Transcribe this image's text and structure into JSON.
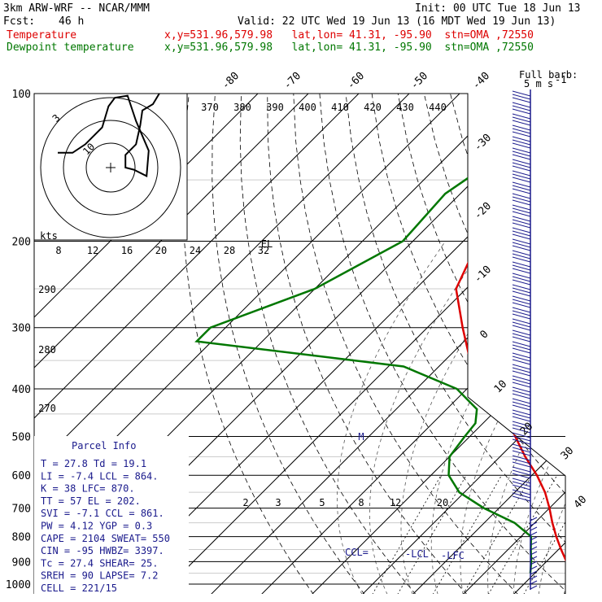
{
  "header": {
    "model": "3km ARW-WRF -- NCAR/MMM",
    "init": "Init: 00 UTC Tue 18 Jun 13",
    "fcst_label": "Fcst:",
    "fcst_value": "46 h",
    "valid": "Valid: 22 UTC Wed 19 Jun 13 (16 MDT Wed 19 Jun 13)",
    "temp_label": "Temperature",
    "temp_info": "x,y=531.96,579.98   lat,lon= 41.31, -95.90  stn=OMA ,72550",
    "dew_label": "Dewpoint temperature",
    "dew_info": "x,y=531.96,579.98   lat,lon= 41.31, -95.90  stn=OMA ,72550"
  },
  "colors": {
    "temperature": "#dd0000",
    "dewpoint": "#007700",
    "parcel_text": "#1a1a8c",
    "wind": "#1a1a8c"
  },
  "chart_data": {
    "type": "skew-t",
    "pressure_levels": [
      "100",
      "200",
      "300",
      "400",
      "500",
      "600",
      "700",
      "800",
      "900",
      "1000"
    ],
    "isotherm_labels": [
      "-80",
      "-70",
      "-60",
      "-50",
      "-40",
      "-30",
      "-20",
      "-10",
      "0",
      "10",
      "20",
      "30",
      "40"
    ],
    "theta_labels": [
      "370",
      "380",
      "390",
      "400",
      "410",
      "420",
      "430",
      "440"
    ],
    "theta_e_labels": [
      "290",
      "280",
      "270"
    ],
    "mixing_ratio_labels": [
      "2",
      "3",
      "5",
      "8",
      "12",
      "20"
    ],
    "hodograph_labels": [
      "3",
      "10",
      "kts",
      "8",
      "12",
      "16",
      "20",
      "24",
      "28",
      "32"
    ],
    "el_marker": "EL",
    "m_marker": "M",
    "markers": {
      "ccl": "CCL=",
      "lcl": "-LCL",
      "lfc": "-LFC"
    },
    "wind_legend": {
      "title": "Full barb:",
      "value": "5 m s",
      "exp": "-1"
    },
    "temperature": [
      [
        100,
        -60.5
      ],
      [
        130,
        -59.5
      ],
      [
        160,
        -57.5
      ],
      [
        200,
        -57
      ],
      [
        250,
        -52
      ],
      [
        300,
        -43
      ],
      [
        350,
        -35
      ],
      [
        400,
        -24
      ],
      [
        450,
        -17
      ],
      [
        500,
        -11
      ],
      [
        550,
        -5
      ],
      [
        600,
        1
      ],
      [
        650,
        6
      ],
      [
        700,
        10
      ],
      [
        750,
        13.5
      ],
      [
        800,
        17
      ],
      [
        850,
        20.5
      ],
      [
        900,
        24
      ],
      [
        950,
        27.8
      ]
    ],
    "dewpoint": [
      [
        100,
        -65
      ],
      [
        130,
        -69
      ],
      [
        160,
        -73
      ],
      [
        200,
        -72
      ],
      [
        250,
        -80
      ],
      [
        300,
        -93
      ],
      [
        320,
        -93
      ],
      [
        360,
        -47
      ],
      [
        400,
        -32
      ],
      [
        440,
        -24
      ],
      [
        470,
        -21.5
      ],
      [
        500,
        -21
      ],
      [
        550,
        -20
      ],
      [
        600,
        -16.5
      ],
      [
        650,
        -11
      ],
      [
        700,
        -3
      ],
      [
        750,
        6
      ],
      [
        800,
        12
      ],
      [
        850,
        14.5
      ],
      [
        900,
        17
      ],
      [
        950,
        19.1
      ]
    ],
    "hodograph": [
      [
        -50,
        14
      ],
      [
        -36,
        14
      ],
      [
        -24,
        22
      ],
      [
        -8,
        38
      ],
      [
        -2,
        58
      ],
      [
        4,
        66
      ],
      [
        16,
        68
      ],
      [
        24,
        44
      ],
      [
        36,
        16
      ],
      [
        34,
        -8
      ],
      [
        22,
        -2
      ],
      [
        14,
        0
      ],
      [
        14,
        12
      ],
      [
        24,
        22
      ],
      [
        28,
        40
      ],
      [
        30,
        54
      ],
      [
        40,
        60
      ],
      [
        46,
        70
      ]
    ],
    "parcel_info": {
      "title": "Parcel Info",
      "rows": [
        [
          "T  =   27.8 Td =  19.1"
        ],
        [
          "LI =   -7.4 LCL =  864."
        ],
        [
          "K  =     38 LFC=  870."
        ],
        [
          "TT =     57 EL  =  202."
        ],
        [
          "SVI =  -7.1 CCL =  861."
        ],
        [
          "PW =   4.12 YGP =   0.3"
        ],
        [
          "CAPE =  2104 SWEAT=  550"
        ],
        [
          "CIN  =   -95 HWBZ= 3397."
        ],
        [
          "Tc =   27.4 SHEAR=  25."
        ],
        [
          "SREH =    90 LAPSE=  7.2"
        ],
        [
          "CELL = 221/15"
        ]
      ]
    }
  }
}
